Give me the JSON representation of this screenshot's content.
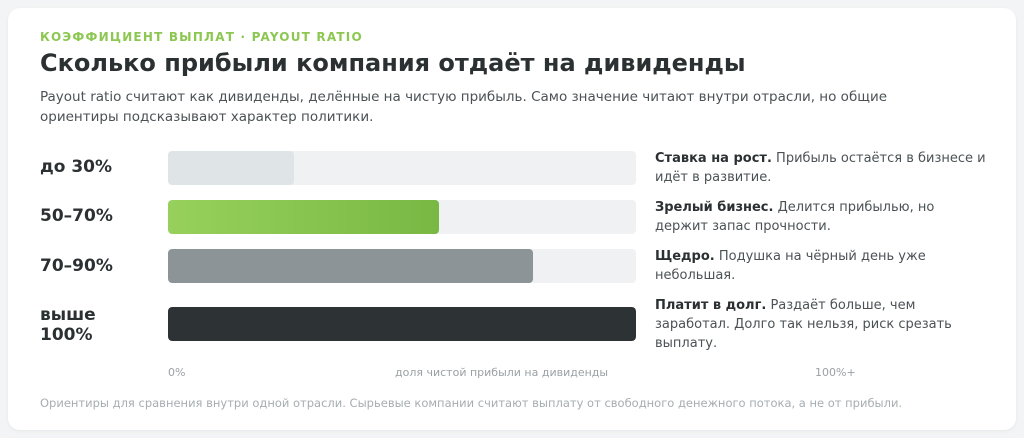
{
  "header": {
    "eyebrow": "КОЭФФИЦИЕНТ ВЫПЛАТ · PAYOUT RATIO",
    "title": "Сколько прибыли компания отдаёт на дивиденды",
    "subtitle": "Payout ratio считают как дивиденды, делённые на чистую прибыль. Само значение читают внутри отрасли, но общие ориентиры подсказывают характер политики."
  },
  "colors": {
    "accent": "#8cc751",
    "track": "#f0f1f2",
    "bar_low": "#dfe4e7",
    "bar_mid_start": "#97d15c",
    "bar_mid_end": "#78b843",
    "bar_high": "#8c9498",
    "bar_over": "#2d3335"
  },
  "chart_data": {
    "type": "bar",
    "orientation": "horizontal",
    "categories": [
      "до 30%",
      "50–70%",
      "70–90%",
      "выше 100%"
    ],
    "values": [
      27,
      58,
      78,
      100
    ],
    "x_axis": {
      "min_label": "0%",
      "center_label": "доля чистой прибыли на дивиденды",
      "max_label": "100%+"
    },
    "xlim": [
      0,
      100
    ],
    "annotations": [
      {
        "title": "Ставка на рост.",
        "text": "Прибыль остаётся в бизнесе и идёт в развитие."
      },
      {
        "title": "Зрелый бизнес.",
        "text": "Делится прибылью, но держит запас прочности."
      },
      {
        "title": "Щедро.",
        "text": "Подушка на чёрный день уже небольшая."
      },
      {
        "title": "Платит в долг.",
        "text": "Раздаёт больше, чем заработал. Долго так нельзя, риск срезать выплату."
      }
    ]
  },
  "footer": {
    "text": "Ориентиры для сравнения внутри одной отрасли. Сырьевые компании считают выплату от свободного денежного потока, а не от прибыли."
  }
}
